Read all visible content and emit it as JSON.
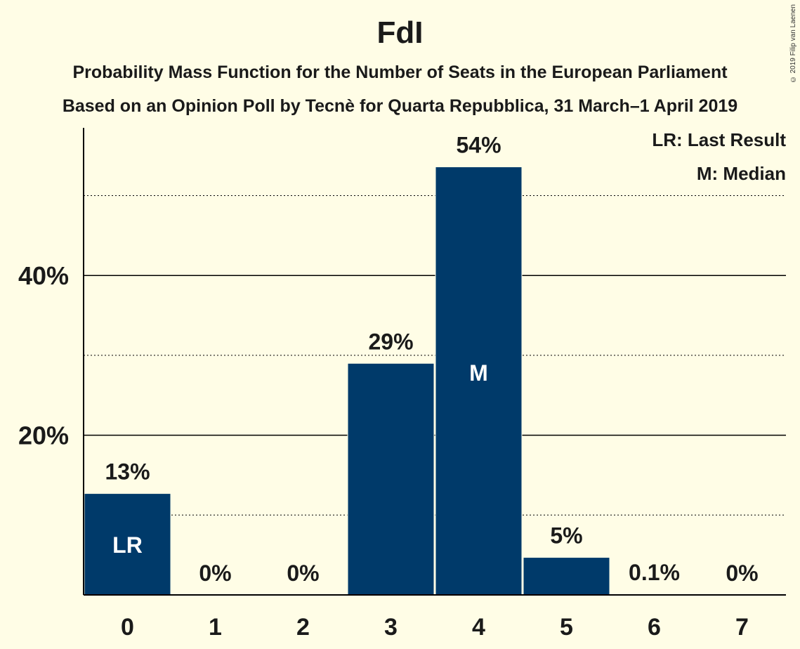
{
  "title": "FdI",
  "subtitle_1": "Probability Mass Function for the Number of Seats in the European Parliament",
  "subtitle_2": "Based on an Opinion Poll by Tecnè for Quarta Repubblica, 31 March–1 April 2019",
  "copyright": "© 2019 Filip van Laenen",
  "legend": {
    "last_result": "LR: Last Result",
    "median": "M: Median"
  },
  "colors": {
    "background": "#FFFDE6",
    "bar": "#003A6A",
    "bar_label_inside": "#FFFFFF"
  },
  "chart_data": {
    "type": "bar",
    "categories": [
      "0",
      "1",
      "2",
      "3",
      "4",
      "5",
      "6",
      "7"
    ],
    "values": [
      12.7,
      0,
      0,
      29,
      53.6,
      4.7,
      0.1,
      0
    ],
    "data_labels": [
      "13%",
      "0%",
      "0%",
      "29%",
      "54%",
      "5%",
      "0.1%",
      "0%"
    ],
    "bar_markers": [
      "LR",
      "",
      "",
      "",
      "M",
      "",
      "",
      ""
    ],
    "ylim": [
      0,
      58
    ],
    "y_ticks": [
      20,
      40
    ],
    "y_tick_labels": [
      "20%",
      "40%"
    ],
    "y_minor_gridlines": [
      10,
      30,
      50
    ],
    "xlabel": "",
    "ylabel": "",
    "legend_position": "top-right"
  }
}
